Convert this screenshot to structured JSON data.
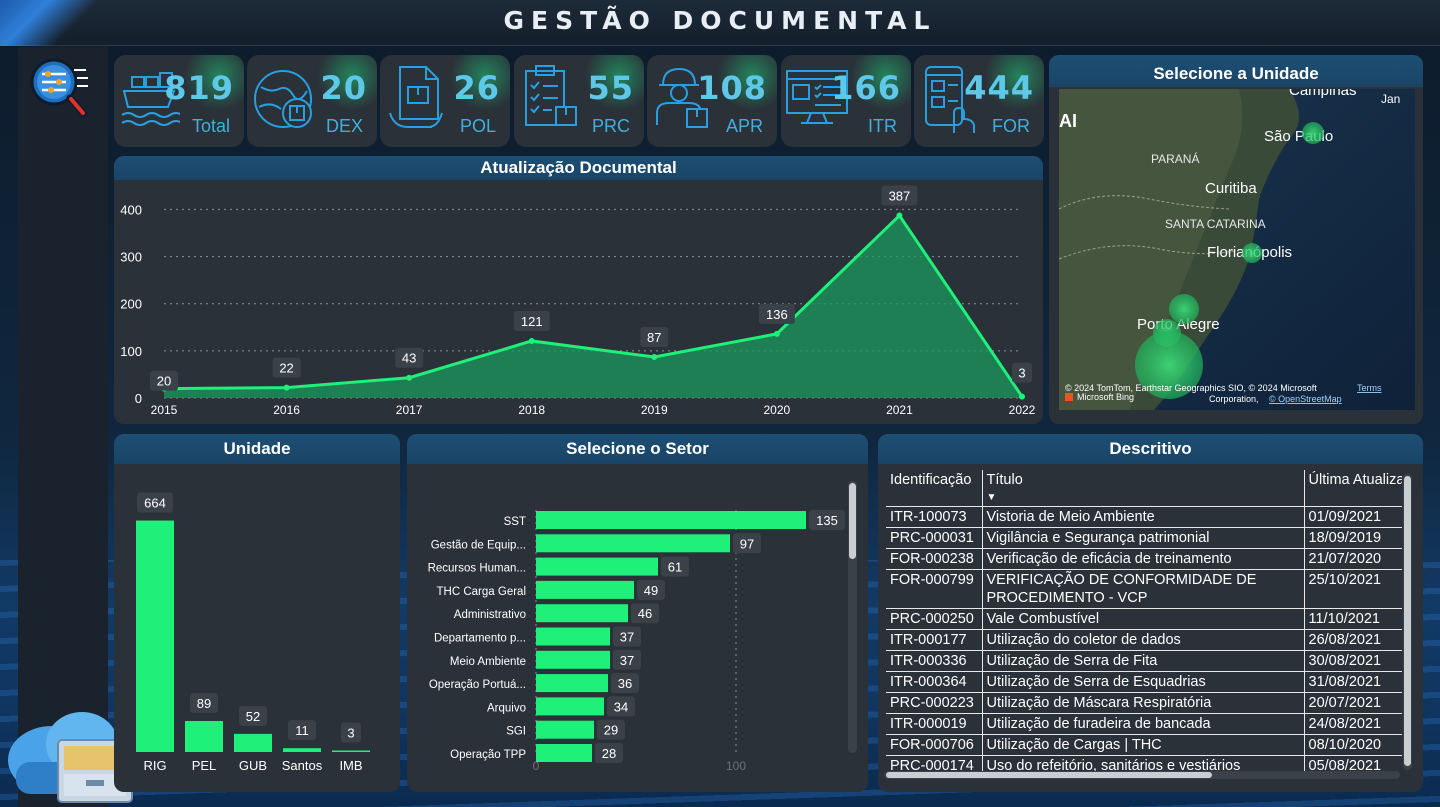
{
  "header": {
    "title": "GESTÃO DOCUMENTAL"
  },
  "kpis": [
    {
      "value": "819",
      "label": "Total",
      "icon": "cargo-ship-icon"
    },
    {
      "value": "20",
      "label": "DEX",
      "icon": "globe-box-icon"
    },
    {
      "value": "26",
      "label": "POL",
      "icon": "document-box-icon"
    },
    {
      "value": "55",
      "label": "PRC",
      "icon": "clipboard-checklist-icon"
    },
    {
      "value": "108",
      "label": "APR",
      "icon": "worker-icon"
    },
    {
      "value": "166",
      "label": "ITR",
      "icon": "monitor-checklist-icon"
    },
    {
      "value": "444",
      "label": "FOR",
      "icon": "phone-form-icon"
    }
  ],
  "colors": {
    "accent_green": "#1ff07a",
    "panel_header": "#1d4f74",
    "panel_bg": "#2a3139",
    "kpi_text": "#5ec8e8"
  },
  "line_chart": {
    "title": "Atualização Documental",
    "chart_data": {
      "type": "area",
      "x": [
        "2015",
        "2016",
        "2017",
        "2018",
        "2019",
        "2020",
        "2021",
        "2022"
      ],
      "values": [
        20,
        22,
        43,
        121,
        87,
        136,
        387,
        3
      ],
      "yticks": [
        "0",
        "100",
        "200",
        "300",
        "400"
      ],
      "ylim": [
        0,
        420
      ],
      "grid": true
    }
  },
  "map": {
    "title": "Selecione a Unidade",
    "labels": [
      "Campinas",
      "Jan",
      "São Paulo",
      "PARANÁ",
      "Curitiba",
      "SANTA CATARINA",
      "Florianópolis",
      "Porto Alegre",
      "AI"
    ],
    "attribution": "© 2024 TomTom, Earthstar Geographics SIO, © 2024 Microsoft",
    "attribution2": "Corporation,",
    "terms": "Terms",
    "osm": "© OpenStreetMap",
    "brand": "Microsoft Bing"
  },
  "unit_chart": {
    "title": "Unidade",
    "chart_data": {
      "type": "bar",
      "categories": [
        "RIG",
        "PEL",
        "GUB",
        "Santos",
        "IMB"
      ],
      "values": [
        664,
        89,
        52,
        11,
        3
      ],
      "ylim": [
        0,
        700
      ]
    }
  },
  "sector_chart": {
    "title": "Selecione o Setor",
    "chart_data": {
      "type": "bar",
      "orientation": "horizontal",
      "categories": [
        "SST",
        "Gestão de Equip...",
        "Recursos Human...",
        "THC Carga Geral",
        "Administrativo",
        "Departamento p...",
        "Meio Ambiente",
        "Operação Portuá...",
        "Arquivo",
        "SGI",
        "Operação TPP"
      ],
      "values": [
        135,
        97,
        61,
        49,
        46,
        37,
        37,
        36,
        34,
        29,
        28
      ],
      "xticks": [
        "0",
        "100"
      ],
      "xlim": [
        0,
        150
      ]
    }
  },
  "table": {
    "title": "Descritivo",
    "columns": [
      "Identificação",
      "Título",
      "Última Atualização"
    ],
    "rows": [
      [
        "ITR-100073",
        "Vistoria de Meio Ambiente",
        "01/09/2021"
      ],
      [
        "PRC-000031",
        "Vigilância e Segurança patrimonial",
        "18/09/2019"
      ],
      [
        "FOR-000238",
        "Verificação de eficácia de treinamento",
        "21/07/2020"
      ],
      [
        "FOR-000799",
        "VERIFICAÇÃO DE CONFORMIDADE DE PROCEDIMENTO - VCP",
        "25/10/2021"
      ],
      [
        "PRC-000250",
        "Vale Combustível",
        "11/10/2021"
      ],
      [
        "ITR-000177",
        "Utilização do coletor de dados",
        "26/08/2021"
      ],
      [
        "ITR-000336",
        "Utilização de Serra de Fita",
        "30/08/2021"
      ],
      [
        "ITR-000364",
        "Utilização de Serra de Esquadrias",
        "31/08/2021"
      ],
      [
        "PRC-000223",
        "Utilização de Máscara Respiratória",
        "20/07/2021"
      ],
      [
        "ITR-000019",
        "Utilização de furadeira de bancada",
        "24/08/2021"
      ],
      [
        "FOR-000706",
        "Utilização de Cargas | THC",
        "08/10/2020"
      ],
      [
        "PRC-000174",
        "Uso do refeitório, sanitários e vestiários",
        "05/08/2021"
      ]
    ]
  }
}
